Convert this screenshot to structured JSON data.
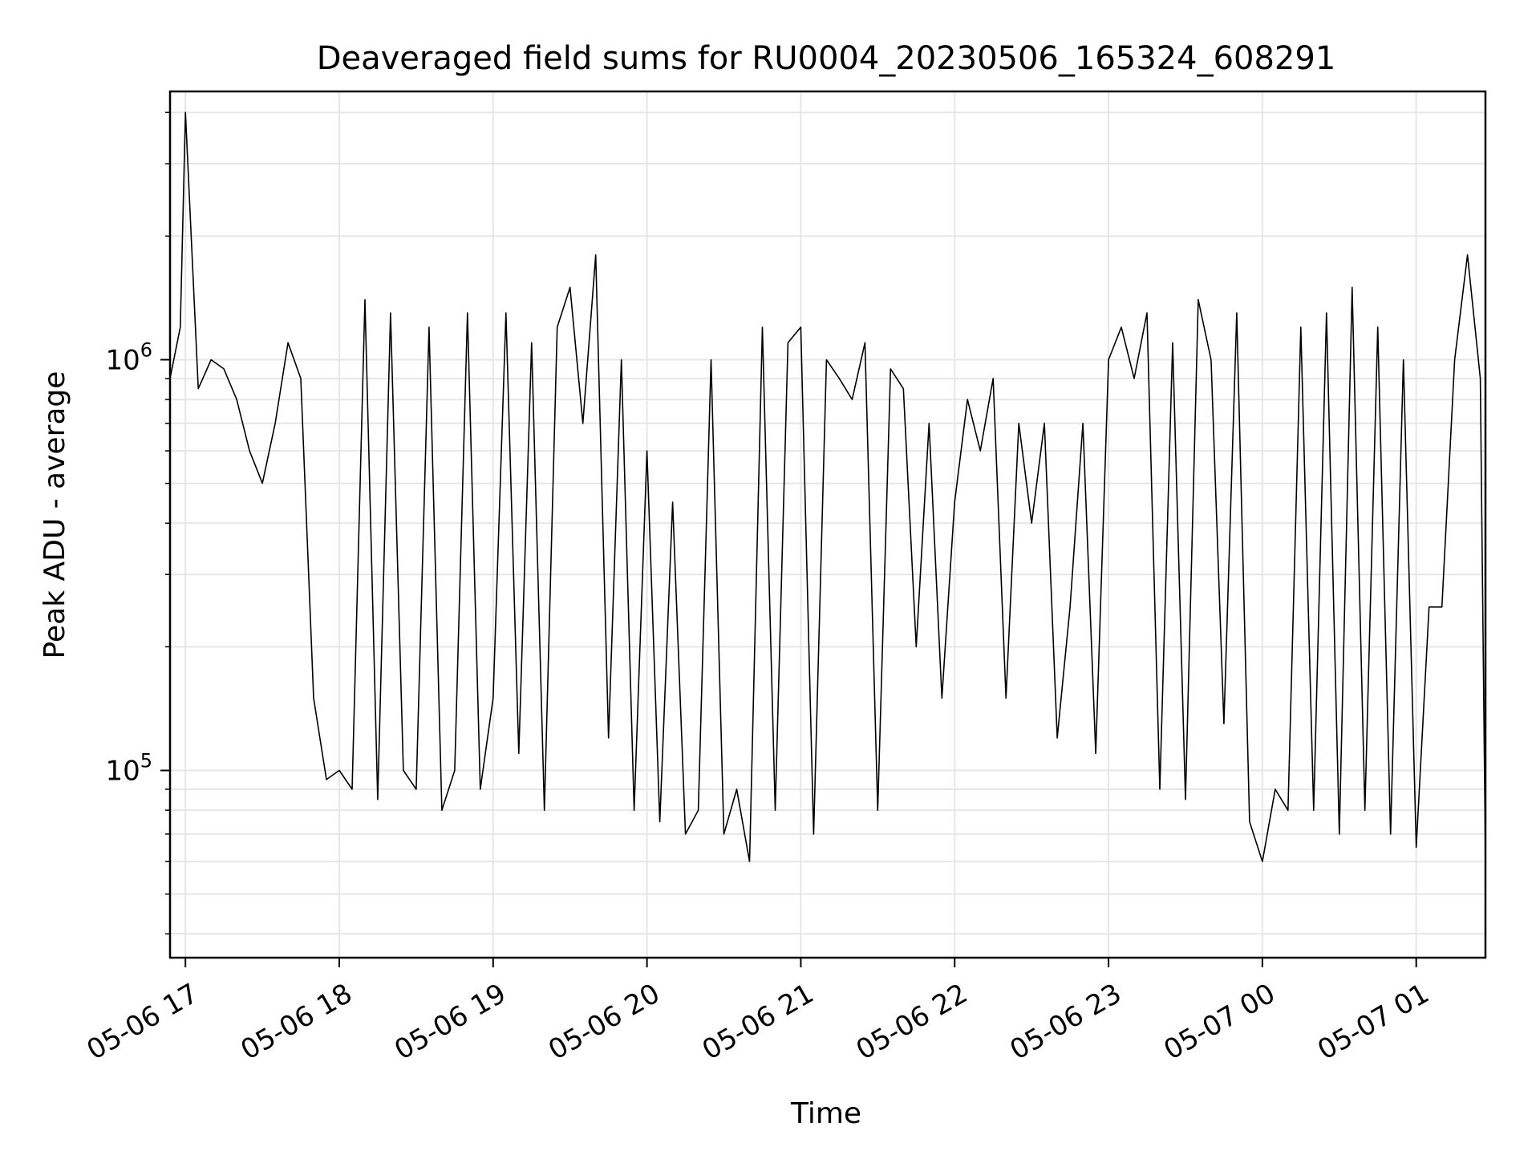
{
  "chart_data": {
    "type": "line",
    "title": "Deaveraged field sums for RU0004_20230506_165324_608291",
    "xlabel": "Time",
    "ylabel": "Peak ADU - average",
    "yscale": "log",
    "grid": true,
    "xlim": [
      "2023-05-06 16:54",
      "2023-05-07 01:27"
    ],
    "ylim": [
      35000,
      4500000
    ],
    "x_ticks": [
      {
        "value": "2023-05-06 17:00",
        "label": "05-06 17"
      },
      {
        "value": "2023-05-06 18:00",
        "label": "05-06 18"
      },
      {
        "value": "2023-05-06 19:00",
        "label": "05-06 19"
      },
      {
        "value": "2023-05-06 20:00",
        "label": "05-06 20"
      },
      {
        "value": "2023-05-06 21:00",
        "label": "05-06 21"
      },
      {
        "value": "2023-05-06 22:00",
        "label": "05-06 22"
      },
      {
        "value": "2023-05-06 23:00",
        "label": "05-06 23"
      },
      {
        "value": "2023-05-07 00:00",
        "label": "05-07 00"
      },
      {
        "value": "2023-05-07 01:00",
        "label": "05-07 01"
      }
    ],
    "y_ticks": [
      {
        "value": 100000,
        "base": "10",
        "exp": "5"
      },
      {
        "value": 1000000,
        "base": "10",
        "exp": "6"
      }
    ],
    "series": [
      {
        "color": "#000000",
        "x": [
          "2023-05-06 16:54",
          "2023-05-06 16:58",
          "2023-05-06 17:00",
          "2023-05-06 17:05",
          "2023-05-06 17:10",
          "2023-05-06 17:15",
          "2023-05-06 17:20",
          "2023-05-06 17:25",
          "2023-05-06 17:30",
          "2023-05-06 17:35",
          "2023-05-06 17:40",
          "2023-05-06 17:45",
          "2023-05-06 17:50",
          "2023-05-06 17:55",
          "2023-05-06 18:00",
          "2023-05-06 18:05",
          "2023-05-06 18:10",
          "2023-05-06 18:15",
          "2023-05-06 18:20",
          "2023-05-06 18:25",
          "2023-05-06 18:30",
          "2023-05-06 18:35",
          "2023-05-06 18:40",
          "2023-05-06 18:45",
          "2023-05-06 18:50",
          "2023-05-06 18:55",
          "2023-05-06 19:00",
          "2023-05-06 19:05",
          "2023-05-06 19:10",
          "2023-05-06 19:15",
          "2023-05-06 19:20",
          "2023-05-06 19:25",
          "2023-05-06 19:30",
          "2023-05-06 19:35",
          "2023-05-06 19:40",
          "2023-05-06 19:45",
          "2023-05-06 19:50",
          "2023-05-06 19:55",
          "2023-05-06 20:00",
          "2023-05-06 20:05",
          "2023-05-06 20:10",
          "2023-05-06 20:15",
          "2023-05-06 20:20",
          "2023-05-06 20:25",
          "2023-05-06 20:30",
          "2023-05-06 20:35",
          "2023-05-06 20:40",
          "2023-05-06 20:45",
          "2023-05-06 20:50",
          "2023-05-06 20:55",
          "2023-05-06 21:00",
          "2023-05-06 21:05",
          "2023-05-06 21:10",
          "2023-05-06 21:15",
          "2023-05-06 21:20",
          "2023-05-06 21:25",
          "2023-05-06 21:30",
          "2023-05-06 21:35",
          "2023-05-06 21:40",
          "2023-05-06 21:45",
          "2023-05-06 21:50",
          "2023-05-06 21:55",
          "2023-05-06 22:00",
          "2023-05-06 22:05",
          "2023-05-06 22:10",
          "2023-05-06 22:15",
          "2023-05-06 22:20",
          "2023-05-06 22:25",
          "2023-05-06 22:30",
          "2023-05-06 22:35",
          "2023-05-06 22:40",
          "2023-05-06 22:45",
          "2023-05-06 22:50",
          "2023-05-06 22:55",
          "2023-05-06 23:00",
          "2023-05-06 23:05",
          "2023-05-06 23:10",
          "2023-05-06 23:15",
          "2023-05-06 23:20",
          "2023-05-06 23:25",
          "2023-05-06 23:30",
          "2023-05-06 23:35",
          "2023-05-06 23:40",
          "2023-05-06 23:45",
          "2023-05-06 23:50",
          "2023-05-06 23:55",
          "2023-05-07 00:00",
          "2023-05-07 00:05",
          "2023-05-07 00:10",
          "2023-05-07 00:15",
          "2023-05-07 00:20",
          "2023-05-07 00:25",
          "2023-05-07 00:30",
          "2023-05-07 00:35",
          "2023-05-07 00:40",
          "2023-05-07 00:45",
          "2023-05-07 00:50",
          "2023-05-07 00:55",
          "2023-05-07 01:00",
          "2023-05-07 01:05",
          "2023-05-07 01:10",
          "2023-05-07 01:15",
          "2023-05-07 01:20",
          "2023-05-07 01:25",
          "2023-05-07 01:27"
        ],
        "y": [
          900000,
          1200000,
          4000000,
          850000,
          1000000,
          950000,
          800000,
          600000,
          500000,
          700000,
          1100000,
          900000,
          150000,
          95000,
          100000,
          90000,
          1400000,
          85000,
          1300000,
          100000,
          90000,
          1200000,
          80000,
          100000,
          1300000,
          90000,
          150000,
          1300000,
          110000,
          1100000,
          80000,
          1200000,
          1500000,
          700000,
          1800000,
          120000,
          1000000,
          80000,
          600000,
          75000,
          450000,
          70000,
          80000,
          1000000,
          70000,
          90000,
          60000,
          1200000,
          80000,
          1100000,
          1200000,
          70000,
          1000000,
          900000,
          800000,
          1100000,
          80000,
          950000,
          850000,
          200000,
          700000,
          150000,
          450000,
          800000,
          600000,
          900000,
          150000,
          700000,
          400000,
          700000,
          120000,
          250000,
          700000,
          110000,
          1000000,
          1200000,
          900000,
          1300000,
          90000,
          1100000,
          85000,
          1400000,
          1000000,
          130000,
          1300000,
          75000,
          60000,
          90000,
          80000,
          1200000,
          80000,
          1300000,
          70000,
          1500000,
          80000,
          1200000,
          70000,
          1000000,
          65000,
          250000,
          250000,
          1000000,
          1800000,
          900000,
          60000
        ]
      }
    ]
  }
}
